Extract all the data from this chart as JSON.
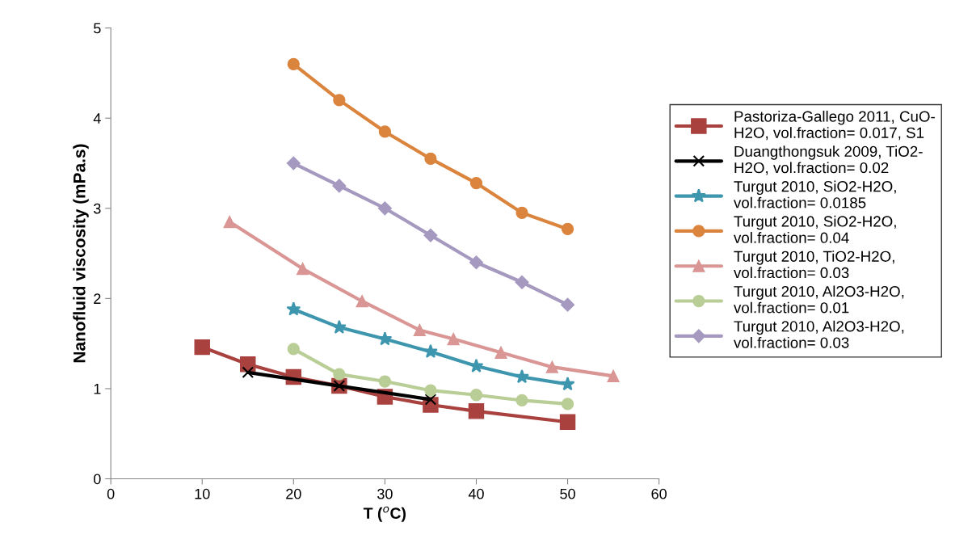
{
  "chart_data": {
    "type": "line",
    "xlabel": "T ($^{o}$C)",
    "ylabel": "Nanofluid viscosity (mPa.s)",
    "xlim": [
      0,
      60
    ],
    "xticks": [
      0,
      10,
      20,
      30,
      40,
      50,
      60
    ],
    "ylim": [
      0,
      5
    ],
    "yticks": [
      0,
      1,
      2,
      3,
      4,
      5
    ],
    "grid": false,
    "legend": "right",
    "line_style": "solid",
    "series": [
      {
        "name": "Pastoriza-Gallego 2011, CuO-H2O, vol.fraction= 0.017, S1",
        "color": "#a9423f",
        "marker": "square",
        "x": [
          10,
          15,
          20,
          25,
          30,
          35,
          40,
          50
        ],
        "values": [
          1.46,
          1.27,
          1.13,
          1.03,
          0.91,
          0.82,
          0.75,
          0.63
        ]
      },
      {
        "name": "Duangthongsuk 2009, TiO2-H2O, vol.fraction= 0.02",
        "color": "#000000",
        "marker": "cross",
        "x": [
          15,
          25,
          35
        ],
        "values": [
          1.18,
          1.03,
          0.88
        ]
      },
      {
        "name": "Turgut 2010, SiO2-H2O, vol.fraction= 0.0185",
        "color": "#3d96ae",
        "marker": "star",
        "x": [
          20,
          25,
          30,
          35,
          40,
          45,
          50
        ],
        "values": [
          1.88,
          1.68,
          1.55,
          1.41,
          1.25,
          1.13,
          1.05
        ]
      },
      {
        "name": "Turgut 2010, SiO2-H2O, vol.fraction= 0.04",
        "color": "#db843d",
        "marker": "circle",
        "x": [
          20,
          25,
          30,
          35,
          40,
          45,
          50
        ],
        "values": [
          4.6,
          4.2,
          3.85,
          3.55,
          3.28,
          2.95,
          2.77
        ]
      },
      {
        "name": "Turgut 2010, TiO2-H2O, vol.fraction= 0.03",
        "color": "#d99694",
        "marker": "triangle",
        "x": [
          13,
          21,
          27.5,
          33.8,
          37.5,
          42.7,
          48.3,
          55
        ],
        "values": [
          2.85,
          2.33,
          1.97,
          1.65,
          1.55,
          1.4,
          1.24,
          1.14
        ]
      },
      {
        "name": "Turgut 2010, Al2O3-H2O, vol.fraction= 0.01",
        "color": "#b9cd96",
        "marker": "circle",
        "x": [
          20,
          25,
          30,
          35,
          40,
          45,
          50
        ],
        "values": [
          1.44,
          1.16,
          1.08,
          0.98,
          0.93,
          0.87,
          0.83
        ]
      },
      {
        "name": "Turgut 2010, Al2O3-H2O, vol.fraction= 0.03",
        "color": "#a599c0",
        "marker": "diamond",
        "x": [
          20,
          25,
          30,
          35,
          40,
          45,
          50
        ],
        "values": [
          3.5,
          3.25,
          3.0,
          2.7,
          2.4,
          2.18,
          1.93
        ]
      }
    ]
  }
}
